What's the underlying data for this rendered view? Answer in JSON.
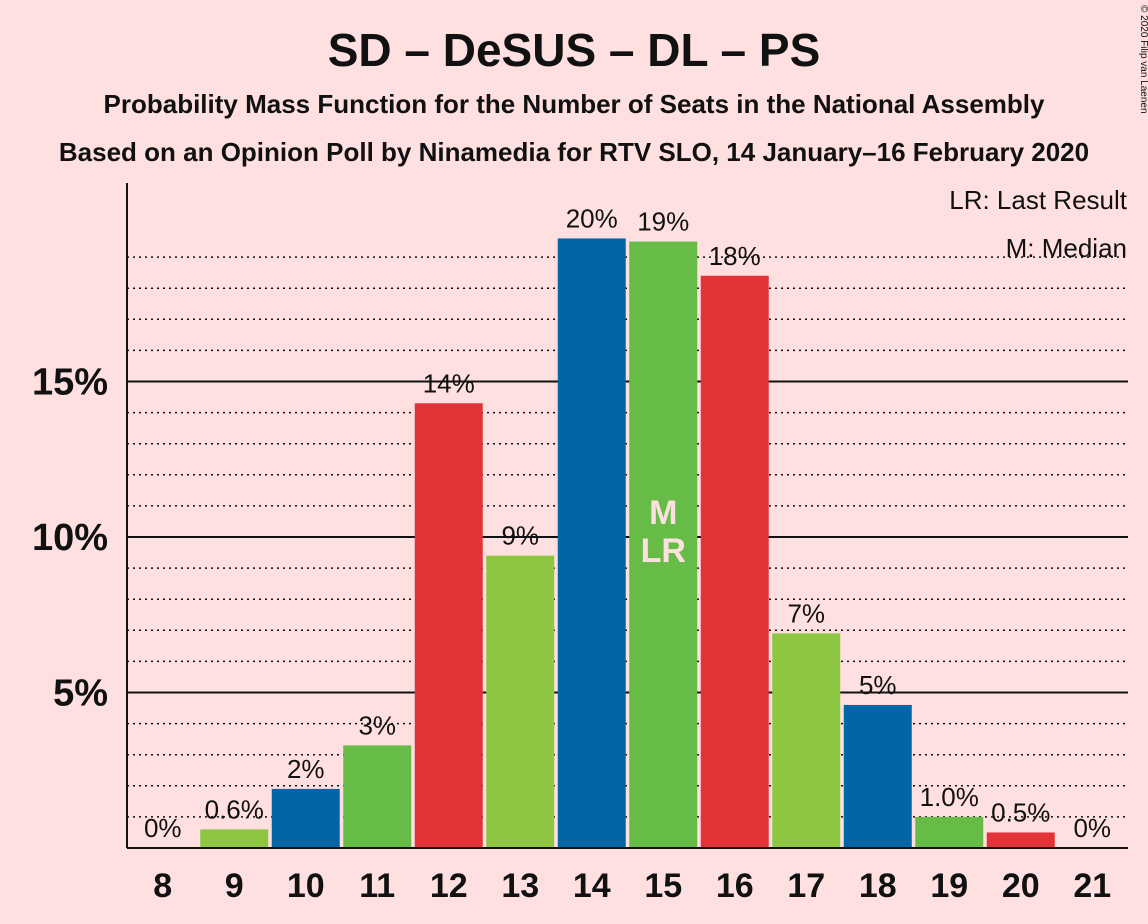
{
  "chart_data": {
    "type": "bar",
    "title": "SD – DeSUS – DL – PS",
    "subtitle": "Probability Mass Function for the Number of Seats in the National Assembly",
    "subtitle2": "Based on an Opinion Poll by Ninamedia for RTV SLO, 14 January–16 February 2020",
    "copyright": "© 2020 Filip van Laenen",
    "legend": [
      "LR: Last Result",
      "M: Median"
    ],
    "legend_position": "top-right",
    "categories": [
      "8",
      "9",
      "10",
      "11",
      "12",
      "13",
      "14",
      "15",
      "16",
      "17",
      "18",
      "19",
      "20",
      "21"
    ],
    "values": [
      0,
      0.6,
      1.9,
      3.3,
      14.3,
      9.4,
      19.6,
      19.5,
      18.4,
      6.9,
      4.6,
      1.0,
      0.5,
      0
    ],
    "value_labels": [
      "0%",
      "0.6%",
      "2%",
      "3%",
      "14%",
      "9%",
      "20%",
      "19%",
      "18%",
      "7%",
      "5%",
      "1.0%",
      "0.5%",
      "0%"
    ],
    "colors": [
      "#8DC641",
      "#8DC641",
      "#0066A5",
      "#67BC48",
      "#E23339",
      "#8DC641",
      "#0066A5",
      "#67BC48",
      "#E23339",
      "#8DC641",
      "#0066A5",
      "#67BC48",
      "#E23339",
      "#8DC641"
    ],
    "yticks": [
      5,
      10,
      15
    ],
    "ytick_labels": [
      "5%",
      "10%",
      "15%"
    ],
    "ylim": [
      0,
      21.3
    ],
    "median_category": "15",
    "median_label": "M",
    "last_result_category": "15",
    "last_result_label": "LR",
    "grid": "dotted minor every 1%, solid major every 5%"
  }
}
